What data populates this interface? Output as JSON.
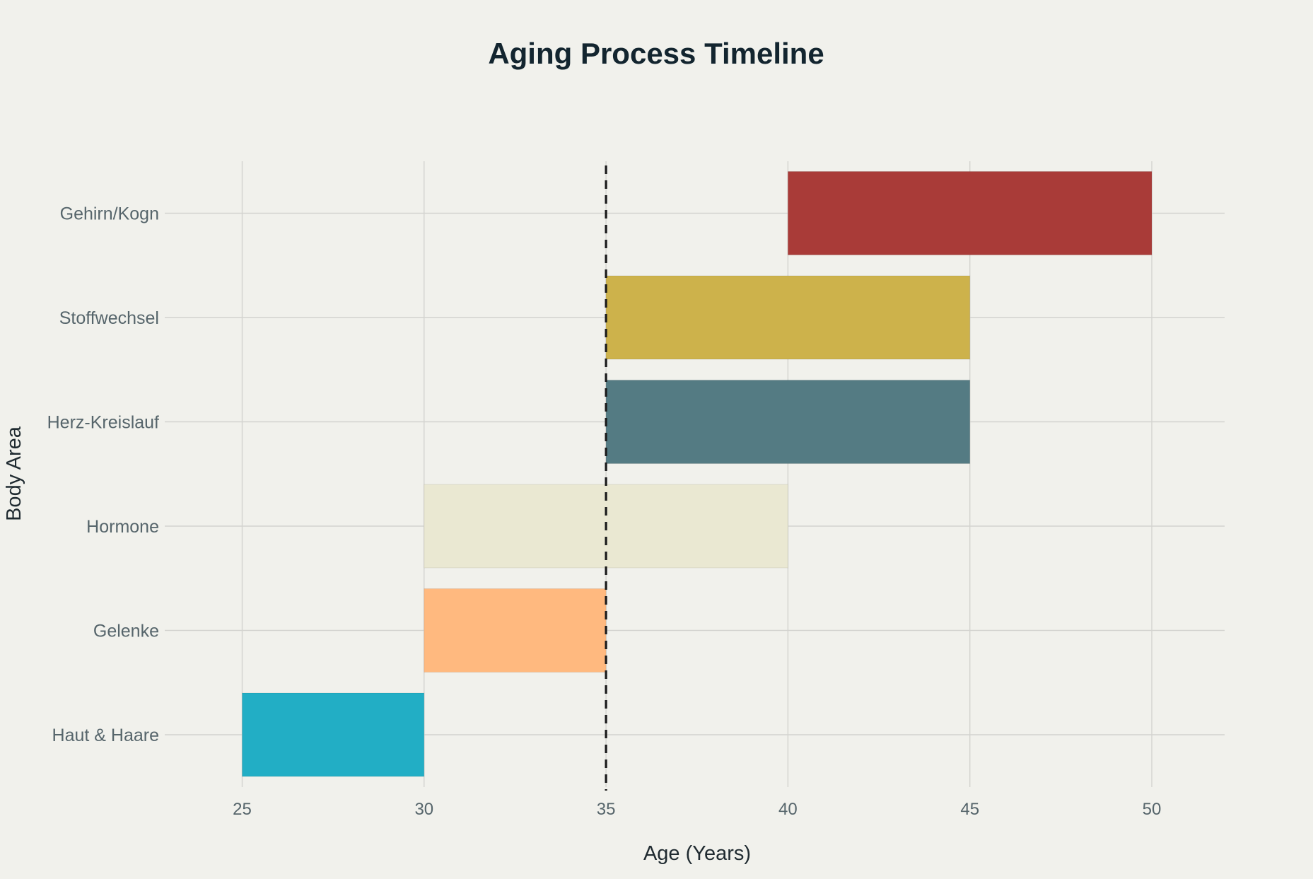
{
  "chart_data": {
    "type": "bar",
    "orientation": "horizontal",
    "title": "Aging Process Timeline",
    "xlabel": "Age (Years)",
    "ylabel": "Body Area",
    "xlim": [
      23,
      52
    ],
    "xticks": [
      25,
      30,
      35,
      40,
      45,
      50
    ],
    "grid": true,
    "categories": [
      "Haut & Haare",
      "Gelenke",
      "Hormone",
      "Herz-Kreislauf",
      "Stoffwechsel",
      "Gehirn/Kogn"
    ],
    "series": [
      {
        "bars": [
          {
            "category": "Haut & Haare",
            "start": 25,
            "end": 30,
            "color": "#22aec5"
          },
          {
            "category": "Gelenke",
            "start": 30,
            "end": 35,
            "color": "#ffb97f"
          },
          {
            "category": "Hormone",
            "start": 30,
            "end": 40,
            "color": "#eae8d2"
          },
          {
            "category": "Herz-Kreislauf",
            "start": 35,
            "end": 45,
            "color": "#547b83"
          },
          {
            "category": "Stoffwechsel",
            "start": 35,
            "end": 45,
            "color": "#cdb24b"
          },
          {
            "category": "Gehirn/Kogn",
            "start": 40,
            "end": 50,
            "color": "#a93b38"
          }
        ]
      }
    ],
    "reference_line": {
      "x": 35,
      "style": "dashed",
      "color": "#1b1b1b"
    }
  }
}
